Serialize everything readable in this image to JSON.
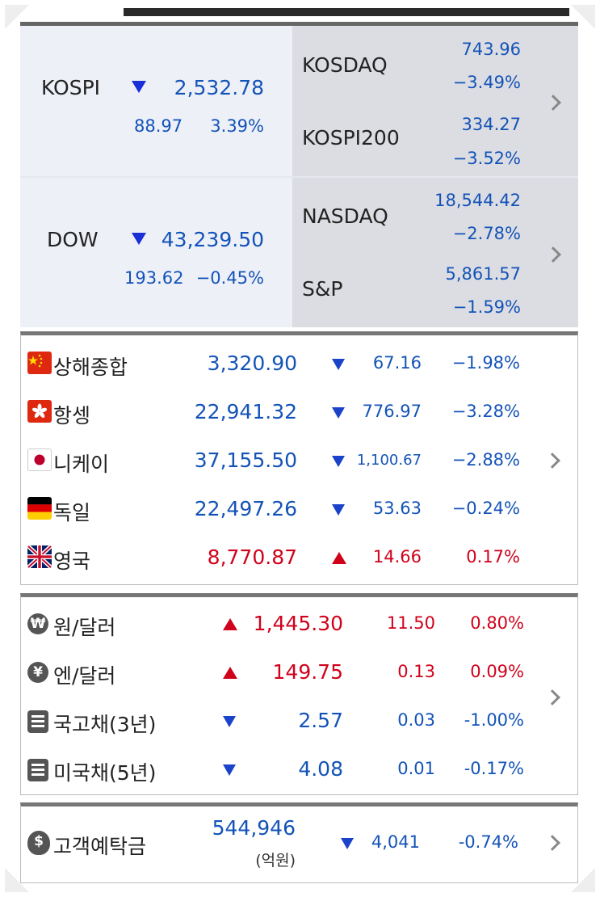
{
  "colors": {
    "up": "#d0021b",
    "down": "#1353b8",
    "panel_left": "#eef0f8",
    "panel_right": "#dcdde2"
  },
  "domestic": {
    "kospi": {
      "label": "KOSPI",
      "direction": "down",
      "value": "2,532.78",
      "change": "88.97",
      "percent": "3.39%"
    },
    "kosdaq": {
      "label": "KOSDAQ",
      "value": "743.96",
      "percent": "−3.49%"
    },
    "kospi200": {
      "label": "KOSPI200",
      "value": "334.27",
      "percent": "−3.52%"
    }
  },
  "us": {
    "dow": {
      "label": "DOW",
      "direction": "down",
      "value": "43,239.50",
      "change": "193.62",
      "percent": "−0.45%"
    },
    "nasdaq": {
      "label": "NASDAQ",
      "value": "18,544.42",
      "percent": "−2.78%"
    },
    "sp": {
      "label": "S&P",
      "value": "5,861.57",
      "percent": "−1.59%"
    }
  },
  "global": [
    {
      "name": "상해종합",
      "flag": "china-flag-icon",
      "value": "3,320.90",
      "direction": "down",
      "change": "67.16",
      "percent": "−1.98%"
    },
    {
      "name": "항셍",
      "flag": "hongkong-flag-icon",
      "value": "22,941.32",
      "direction": "down",
      "change": "776.97",
      "percent": "−3.28%"
    },
    {
      "name": "니케이",
      "flag": "japan-flag-icon",
      "value": "37,155.50",
      "direction": "down",
      "change": "1,100.67",
      "percent": "−2.88%"
    },
    {
      "name": "독일",
      "flag": "germany-flag-icon",
      "value": "22,497.26",
      "direction": "down",
      "change": "53.63",
      "percent": "−0.24%"
    },
    {
      "name": "영국",
      "flag": "uk-flag-icon",
      "value": "8,770.87",
      "direction": "up",
      "change": "14.66",
      "percent": "0.17%"
    }
  ],
  "fx_bonds": [
    {
      "name": "원/달러",
      "icon": "won-coin-icon",
      "icon_glyph": "₩",
      "direction": "up",
      "value": "1,445.30",
      "change": "11.50",
      "percent": "0.80%"
    },
    {
      "name": "엔/달러",
      "icon": "yen-coin-icon",
      "icon_glyph": "¥",
      "direction": "up",
      "value": "149.75",
      "change": "0.13",
      "percent": "0.09%"
    },
    {
      "name": "국고채(3년)",
      "icon": "document-icon",
      "direction": "down",
      "value": "2.57",
      "change": "0.03",
      "percent": "-1.00%"
    },
    {
      "name": "미국채(5년)",
      "icon": "document-icon",
      "direction": "down",
      "value": "4.08",
      "change": "0.01",
      "percent": "-0.17%"
    }
  ],
  "deposit": {
    "name": "고객예탁금",
    "icon": "money-bag-icon",
    "icon_glyph": "$",
    "value": "544,946",
    "unit": "(억원)",
    "direction": "down",
    "change": "4,041",
    "percent": "-0.74%"
  }
}
